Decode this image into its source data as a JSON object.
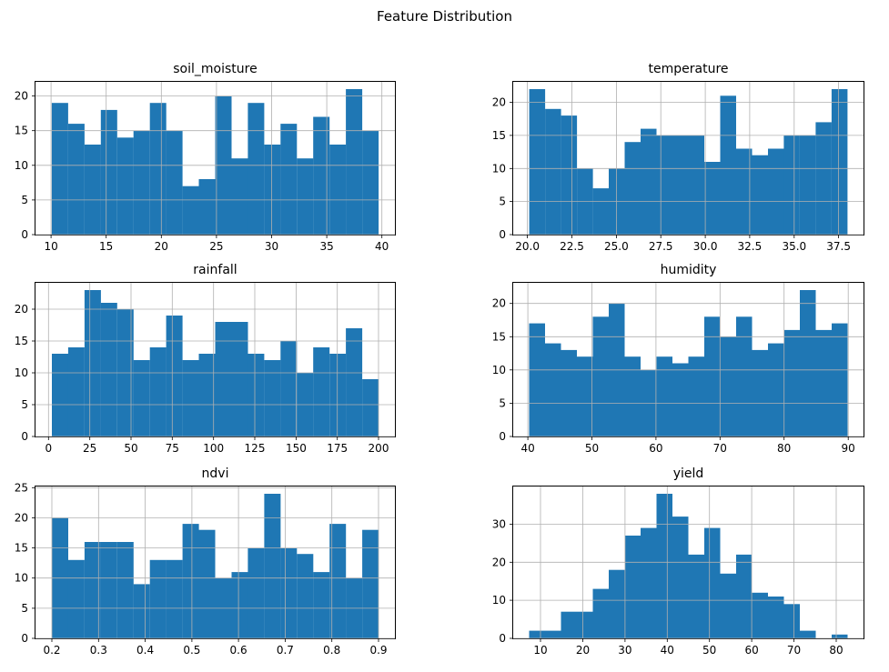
{
  "figure": {
    "title": "Feature Distribution",
    "bar_color": "#1f77b4",
    "grid_color": "#b0b0b0",
    "background": "#ffffff",
    "grid": true,
    "layout": "2 columns x 3 rows of histograms"
  },
  "chart_data": [
    {
      "type": "bar",
      "subtype": "histogram",
      "title": "soil_moisture",
      "bin_start": 10.07,
      "bin_end": 39.7,
      "values": [
        19,
        16,
        13,
        18,
        14,
        15,
        19,
        15,
        7,
        8,
        20,
        11,
        19,
        13,
        16,
        11,
        17,
        13,
        21,
        15
      ],
      "xticks": [
        10,
        15,
        20,
        25,
        30,
        35,
        40
      ],
      "xtick_labels": [
        "10",
        "15",
        "20",
        "25",
        "30",
        "35",
        "40"
      ],
      "yticks": [
        0,
        5,
        10,
        15,
        20
      ],
      "ytick_labels": [
        "0",
        "5",
        "10",
        "15",
        "20"
      ],
      "xlim": [
        8.59,
        41.18
      ],
      "ylim": [
        0,
        22.05
      ]
    },
    {
      "type": "bar",
      "subtype": "histogram",
      "title": "temperature",
      "bin_start": 20.1,
      "bin_end": 38.0,
      "values": [
        22,
        19,
        18,
        10,
        7,
        10,
        14,
        16,
        15,
        15,
        15,
        11,
        21,
        13,
        12,
        13,
        15,
        15,
        17,
        22
      ],
      "xticks": [
        20.0,
        22.5,
        25.0,
        27.5,
        30.0,
        32.5,
        35.0,
        37.5
      ],
      "xtick_labels": [
        "20.0",
        "22.5",
        "25.0",
        "27.5",
        "30.0",
        "32.5",
        "35.0",
        "37.5"
      ],
      "yticks": [
        0,
        5,
        10,
        15,
        20
      ],
      "ytick_labels": [
        "0",
        "5",
        "10",
        "15",
        "20"
      ],
      "xlim": [
        19.2,
        38.9
      ],
      "ylim": [
        0,
        23.1
      ]
    },
    {
      "type": "bar",
      "subtype": "histogram",
      "title": "rainfall",
      "bin_start": 2.0,
      "bin_end": 200.0,
      "values": [
        13,
        14,
        23,
        21,
        20,
        12,
        14,
        19,
        12,
        13,
        18,
        18,
        13,
        12,
        15,
        10,
        14,
        13,
        17,
        9
      ],
      "xticks": [
        0,
        25,
        50,
        75,
        100,
        125,
        150,
        175,
        200
      ],
      "xtick_labels": [
        "0",
        "25",
        "50",
        "75",
        "100",
        "125",
        "150",
        "175",
        "200"
      ],
      "yticks": [
        0,
        5,
        10,
        15,
        20
      ],
      "ytick_labels": [
        "0",
        "5",
        "10",
        "15",
        "20"
      ],
      "xlim": [
        -7.9,
        209.9
      ],
      "ylim": [
        0,
        24.15
      ]
    },
    {
      "type": "bar",
      "subtype": "histogram",
      "title": "humidity",
      "bin_start": 40.2,
      "bin_end": 89.9,
      "values": [
        17,
        14,
        13,
        12,
        18,
        20,
        12,
        10,
        12,
        11,
        12,
        18,
        15,
        18,
        13,
        14,
        16,
        22,
        16,
        17
      ],
      "xticks": [
        40,
        50,
        60,
        70,
        80,
        90
      ],
      "xtick_labels": [
        "40",
        "50",
        "60",
        "70",
        "80",
        "90"
      ],
      "yticks": [
        0,
        5,
        10,
        15,
        20
      ],
      "ytick_labels": [
        "0",
        "5",
        "10",
        "15",
        "20"
      ],
      "xlim": [
        37.72,
        92.39
      ],
      "ylim": [
        0,
        23.1
      ]
    },
    {
      "type": "bar",
      "subtype": "histogram",
      "title": "ndvi",
      "bin_start": 0.2,
      "bin_end": 0.9,
      "values": [
        20,
        13,
        16,
        16,
        16,
        9,
        13,
        13,
        19,
        18,
        10,
        11,
        15,
        24,
        15,
        14,
        11,
        19,
        10,
        18
      ],
      "xticks": [
        0.2,
        0.3,
        0.4,
        0.5,
        0.6,
        0.7,
        0.8,
        0.9
      ],
      "xtick_labels": [
        "0.2",
        "0.3",
        "0.4",
        "0.5",
        "0.6",
        "0.7",
        "0.8",
        "0.9"
      ],
      "yticks": [
        0,
        5,
        10,
        15,
        20,
        25
      ],
      "ytick_labels": [
        "0",
        "5",
        "10",
        "15",
        "20",
        "25"
      ],
      "xlim": [
        0.165,
        0.935
      ],
      "ylim": [
        0,
        25.2
      ]
    },
    {
      "type": "bar",
      "subtype": "histogram",
      "title": "yield",
      "bin_start": 7.3,
      "bin_end": 82.7,
      "values": [
        2,
        2,
        7,
        7,
        13,
        18,
        27,
        29,
        38,
        32,
        22,
        29,
        17,
        22,
        12,
        11,
        9,
        2,
        0,
        1
      ],
      "xticks": [
        10,
        20,
        30,
        40,
        50,
        60,
        70,
        80
      ],
      "xtick_labels": [
        "10",
        "20",
        "30",
        "40",
        "50",
        "60",
        "70",
        "80"
      ],
      "yticks": [
        0,
        10,
        20,
        30
      ],
      "ytick_labels": [
        "0",
        "10",
        "20",
        "30"
      ],
      "xlim": [
        3.53,
        86.47
      ],
      "ylim": [
        0,
        39.9
      ]
    }
  ]
}
